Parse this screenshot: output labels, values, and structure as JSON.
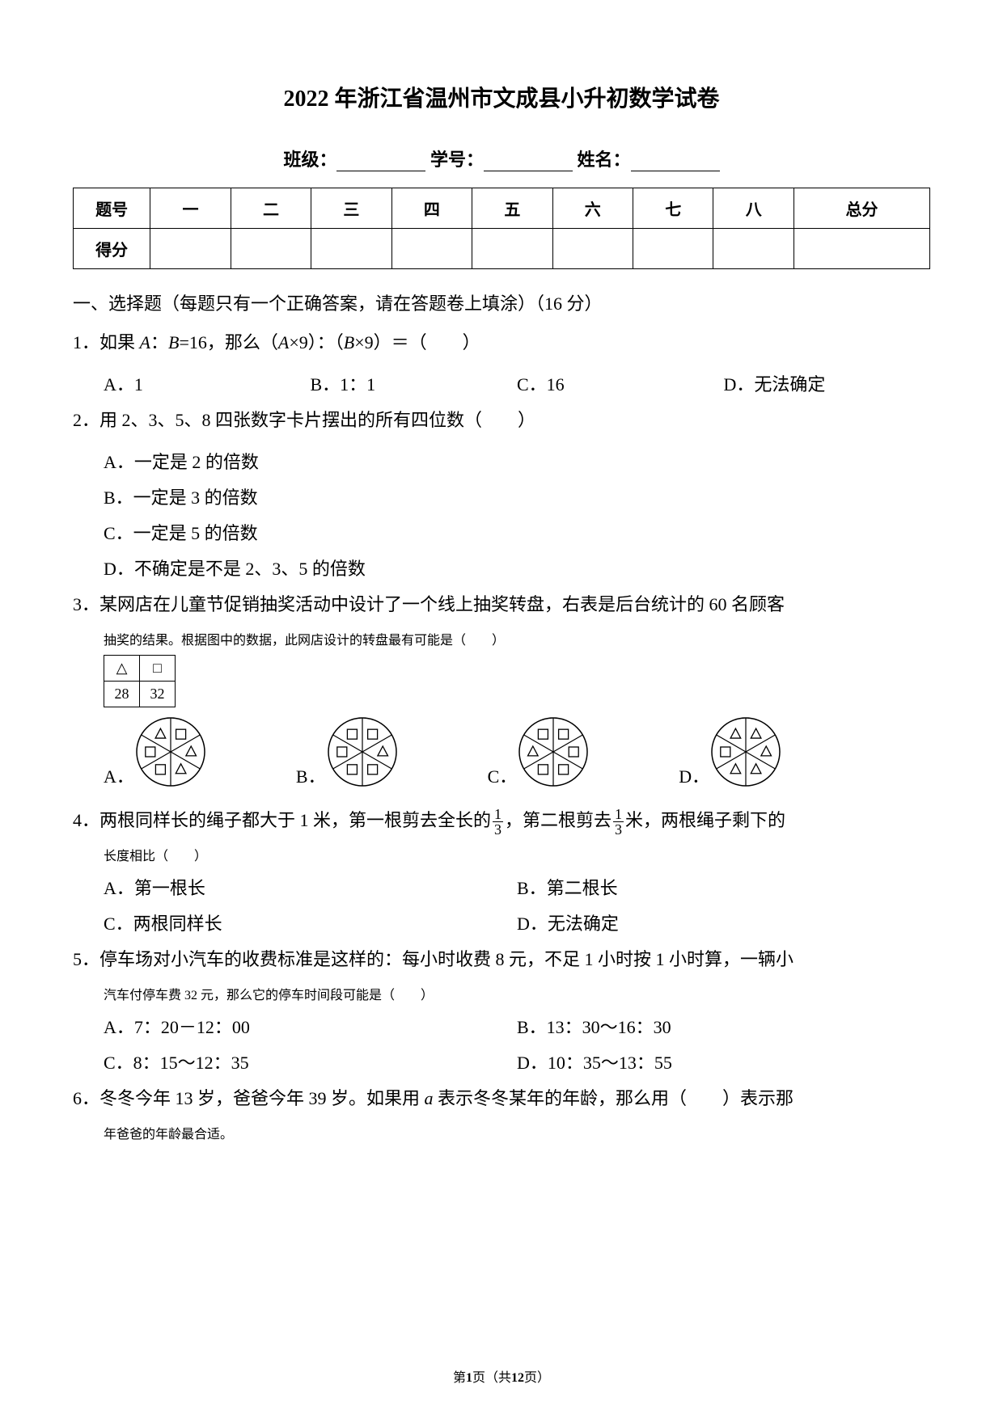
{
  "title": "2022 年浙江省温州市文成县小升初数学试卷",
  "info": {
    "class_label": "班级：",
    "id_label": "学号：",
    "name_label": "姓名："
  },
  "score_table": {
    "headers": [
      "题号",
      "一",
      "二",
      "三",
      "四",
      "五",
      "六",
      "七",
      "八",
      "总分"
    ],
    "row2_first": "得分"
  },
  "section1": "一、选择题（每题只有一个正确答案，请在答题卷上填涂）（16 分）",
  "q1": {
    "num": "1．",
    "text_a": "如果 ",
    "A": "A",
    "colon": "：",
    "B": "B",
    "text_b": "=16，那么（",
    "x9a": "×9）：（",
    "x9b": "×9）＝（　　）",
    "opts": [
      "A．1",
      "B．1：1",
      "C．16",
      "D．无法确定"
    ]
  },
  "q2": {
    "num": "2．",
    "text": "用 2、3、5、8 四张数字卡片摆出的所有四位数（　　）",
    "opts": [
      "A．一定是 2 的倍数",
      "B．一定是 3 的倍数",
      "C．一定是 5 的倍数",
      "D．不确定是不是 2、3、5 的倍数"
    ]
  },
  "q3": {
    "num": "3．",
    "line1": "某网店在儿童节促销抽奖活动中设计了一个线上抽奖转盘，右表是后台统计的 60 名顾客",
    "line2": "抽奖的结果。根据图中的数据，此网店设计的转盘最有可能是（　　）",
    "table": {
      "r1": [
        "△",
        "□"
      ],
      "r2": [
        "28",
        "32"
      ]
    },
    "opt_labels": [
      "A．",
      "B．",
      "C．",
      "D．"
    ],
    "wheel_fills": {
      "A": [
        "sq",
        "tri",
        "tri",
        "sq",
        "sq",
        "tri"
      ],
      "B": [
        "sq",
        "tri",
        "sq",
        "sq",
        "sq",
        "sq"
      ],
      "C": [
        "sq",
        "sq",
        "sq",
        "sq",
        "tri",
        "sq"
      ],
      "D": [
        "tri",
        "tri",
        "tri",
        "tri",
        "sq",
        "tri"
      ]
    },
    "sector_lines_color": "#000000",
    "circle_stroke": "#000000",
    "radius": 42
  },
  "q4": {
    "num": "4．",
    "t1": "两根同样长的绳子都大于 1 米，第一根剪去全长的",
    "t2": "，第二根剪去",
    "t3": "米，两根绳子剩下的",
    "t4": "长度相比（　　）",
    "frac": {
      "num": "1",
      "den": "3"
    },
    "opts": [
      "A．第一根长",
      "B．第二根长",
      "C．两根同样长",
      "D．无法确定"
    ]
  },
  "q5": {
    "num": "5．",
    "line1": "停车场对小汽车的收费标准是这样的：每小时收费 8 元，不足 1 小时按 1 小时算，一辆小",
    "line2": "汽车付停车费 32 元，那么它的停车时间段可能是（　　）",
    "opts": [
      "A．7：20－12：00",
      "B．13：30～16：30",
      "C．8：15～12：35",
      "D．10：35～13：55"
    ]
  },
  "q6": {
    "num": "6．",
    "t1": "冬冬今年 13 岁，爸爸今年 39 岁。如果用 ",
    "a": "a",
    "t2": " 表示冬冬某年的年龄，那么用（　　）表示那",
    "t3": "年爸爸的年龄最合适。"
  },
  "footer": {
    "p1": "第",
    "pn": "1",
    "p2": "页（共",
    "tot": "12",
    "p3": "页）"
  },
  "colors": {
    "text": "#000000",
    "bg": "#ffffff"
  }
}
